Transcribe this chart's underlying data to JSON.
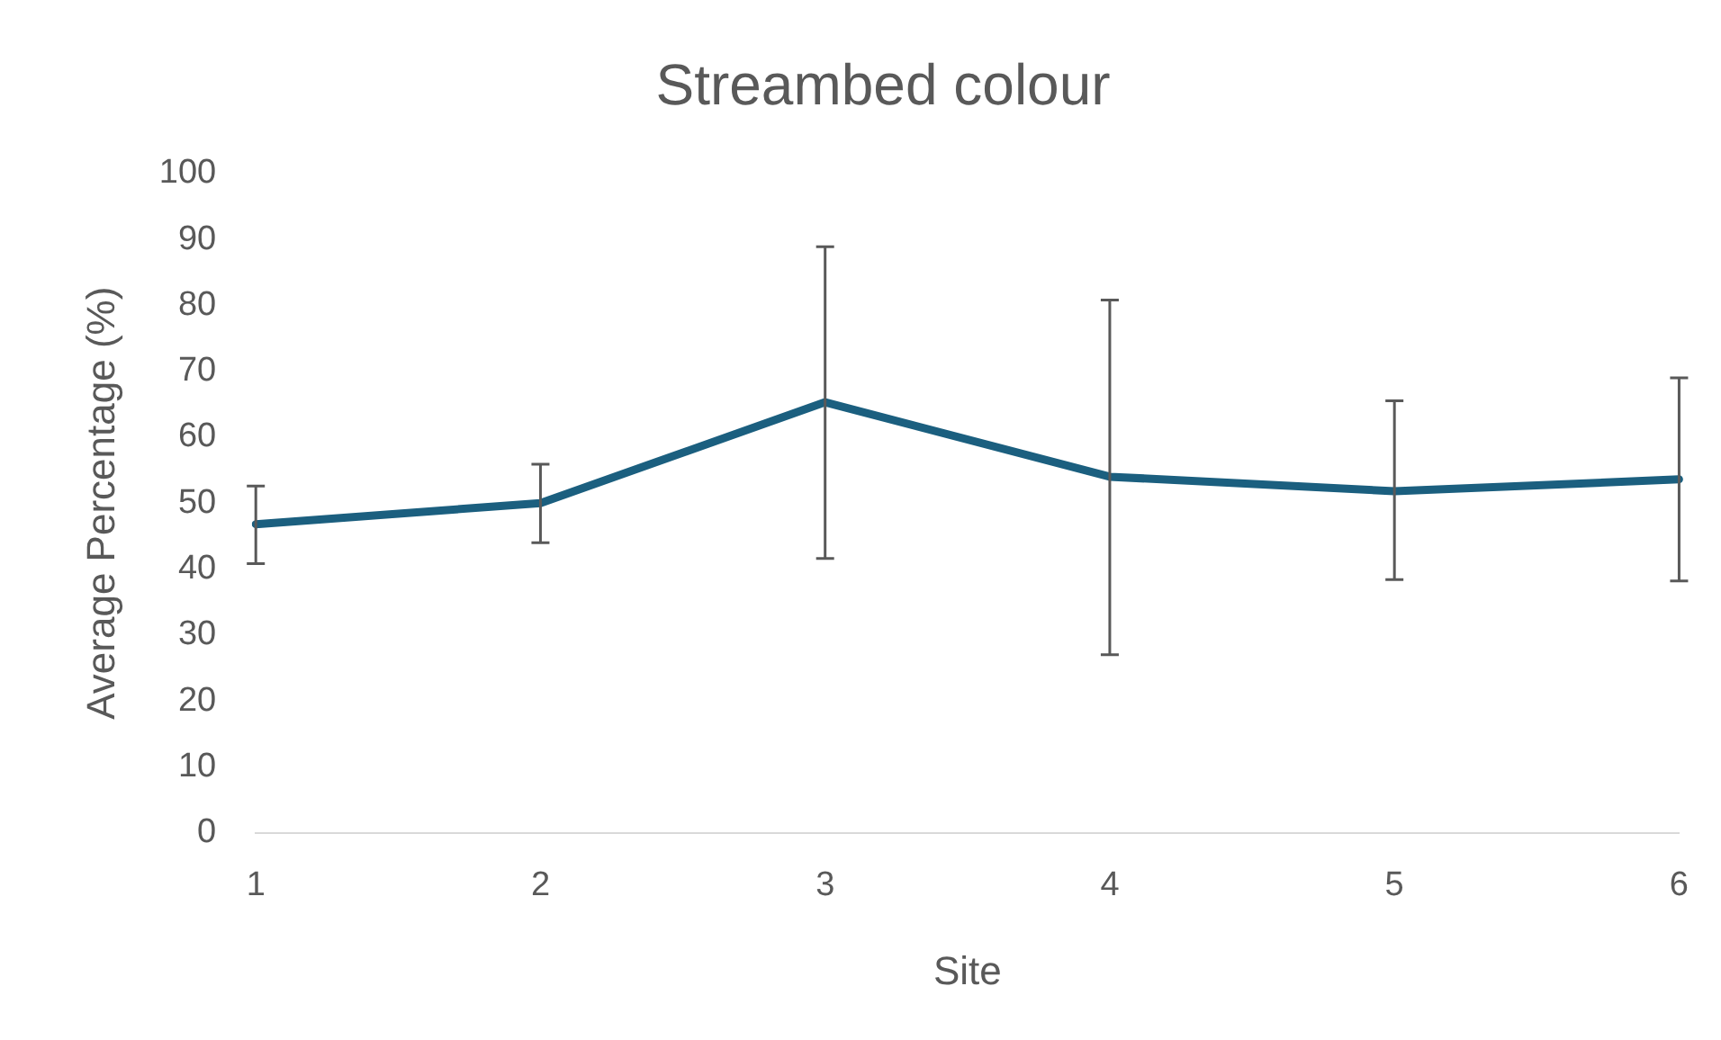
{
  "chart_data": {
    "type": "line",
    "title": "Streambed colour",
    "xlabel": "Site",
    "ylabel": "Average Percentage (%)",
    "categories": [
      "1",
      "2",
      "3",
      "4",
      "5",
      "6"
    ],
    "series": [
      {
        "color": "#1b5f7f",
        "values": [
          46.8,
          50,
          65.3,
          54,
          51.8,
          53.6
        ],
        "errors": [
          [
            40.8,
            52.6
          ],
          [
            44,
            55.9
          ],
          [
            41.6,
            88.9
          ],
          [
            27,
            80.8
          ],
          [
            38.4,
            65.5
          ],
          [
            38.2,
            69
          ]
        ]
      }
    ],
    "ylim": [
      0,
      100
    ],
    "yticks": [
      0,
      10,
      20,
      30,
      40,
      50,
      60,
      70,
      80,
      90,
      100
    ],
    "grid": false,
    "legend": false,
    "marker": "none",
    "line_style": "solid"
  }
}
